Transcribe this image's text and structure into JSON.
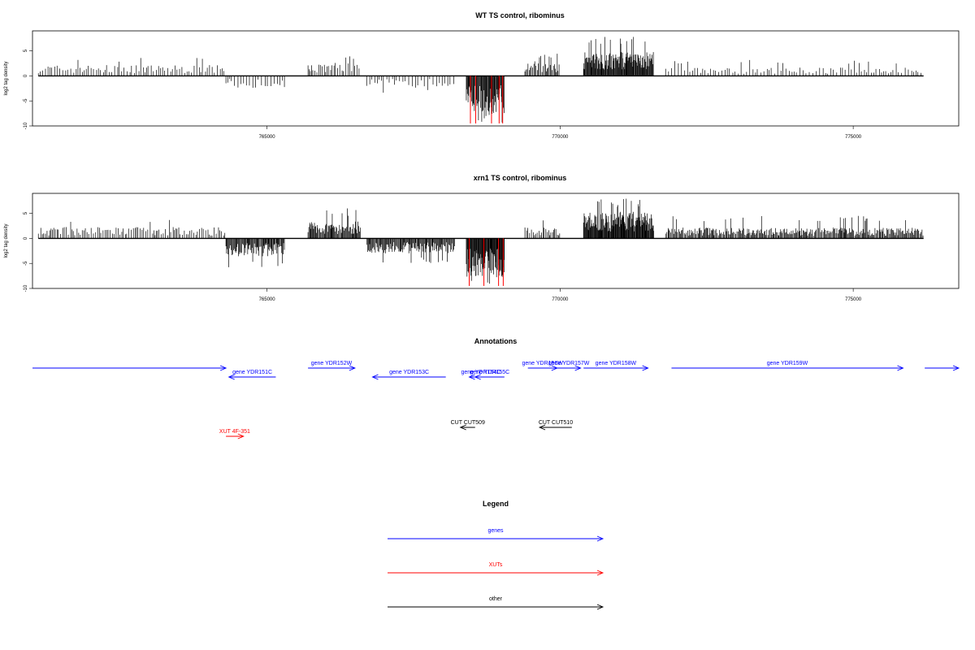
{
  "chart_data": [
    {
      "type": "bar",
      "title": "WT TS control, ribominus",
      "ylabel": "log2 tag density",
      "xlim": [
        761000,
        776800
      ],
      "ylim": [
        -10,
        9
      ],
      "x_ticks": [
        765000,
        770000,
        775000
      ],
      "y_ticks": [
        -10,
        -5,
        0,
        5
      ],
      "highlight_color": "#ff0000",
      "bar_color": "#000000",
      "segments": [
        {
          "from": 761100,
          "to": 764300,
          "sign": 1,
          "mean": 1.8,
          "max": 3.8,
          "density": 0.35
        },
        {
          "from": 764300,
          "to": 765300,
          "sign": -1,
          "mean": 2.0,
          "max": 4.0,
          "density": 0.3
        },
        {
          "from": 765700,
          "to": 766600,
          "sign": 1,
          "mean": 2.3,
          "max": 4.5,
          "density": 0.45
        },
        {
          "from": 766700,
          "to": 768200,
          "sign": -1,
          "mean": 2.0,
          "max": 3.5,
          "density": 0.3
        },
        {
          "from": 768400,
          "to": 769050,
          "sign": -1,
          "mean": 6.0,
          "max": 9.5,
          "density": 1.4
        },
        {
          "from": 769400,
          "to": 770000,
          "sign": 1,
          "mean": 2.5,
          "max": 4.5,
          "density": 0.8
        },
        {
          "from": 770400,
          "to": 771600,
          "sign": 1,
          "mean": 4.0,
          "max": 8.0,
          "density": 1.5
        },
        {
          "from": 771800,
          "to": 776200,
          "sign": 1,
          "mean": 1.4,
          "max": 3.2,
          "density": 0.3
        }
      ],
      "highlights": [
        768470,
        768560,
        768830,
        768960,
        769020
      ]
    },
    {
      "type": "bar",
      "title": "xrn1 TS control, ribominus",
      "ylabel": "log2 tag density",
      "xlim": [
        761000,
        776800
      ],
      "ylim": [
        -10,
        9
      ],
      "x_ticks": [
        765000,
        770000,
        775000
      ],
      "y_ticks": [
        -10,
        -5,
        0,
        5
      ],
      "highlight_color": "#ff0000",
      "bar_color": "#000000",
      "segments": [
        {
          "from": 761100,
          "to": 764300,
          "sign": 1,
          "mean": 1.9,
          "max": 3.8,
          "density": 0.45
        },
        {
          "from": 764300,
          "to": 765300,
          "sign": -1,
          "mean": 3.0,
          "max": 6.0,
          "density": 1.1
        },
        {
          "from": 765700,
          "to": 766600,
          "sign": 1,
          "mean": 2.8,
          "max": 6.0,
          "density": 1.1
        },
        {
          "from": 766700,
          "to": 768200,
          "sign": -1,
          "mean": 2.5,
          "max": 5.0,
          "density": 1.1
        },
        {
          "from": 768400,
          "to": 769050,
          "sign": -1,
          "mean": 6.5,
          "max": 9.5,
          "density": 1.6
        },
        {
          "from": 769400,
          "to": 770000,
          "sign": 1,
          "mean": 2.0,
          "max": 4.0,
          "density": 0.6
        },
        {
          "from": 770400,
          "to": 771600,
          "sign": 1,
          "mean": 4.5,
          "max": 8.0,
          "density": 1.6
        },
        {
          "from": 771800,
          "to": 776200,
          "sign": 1,
          "mean": 1.8,
          "max": 4.5,
          "density": 0.9
        }
      ],
      "highlights": [
        768450,
        768700,
        768950,
        769030
      ]
    }
  ],
  "annotations": {
    "title": "Annotations",
    "gene_color": "#0000ff",
    "xut_color": "#ff0000",
    "other_color": "#000000",
    "items": [
      {
        "label": "",
        "type": "gene",
        "dir": "right",
        "from": 761000,
        "to": 764300,
        "row": 0
      },
      {
        "label": "gene YDR151C",
        "type": "gene",
        "dir": "left",
        "from": 764350,
        "to": 765150,
        "row": 1
      },
      {
        "label": "gene YDR152W",
        "type": "gene",
        "dir": "right",
        "from": 765700,
        "to": 766500,
        "row": 0
      },
      {
        "label": "gene YDR153C",
        "type": "gene",
        "dir": "left",
        "from": 766800,
        "to": 768050,
        "row": 1
      },
      {
        "label": "gene YDR154C",
        "type": "gene",
        "dir": "left",
        "from": 768450,
        "to": 768850,
        "row": 1
      },
      {
        "label": "gene YDR155C",
        "type": "gene",
        "dir": "left",
        "from": 768550,
        "to": 769050,
        "row": 1
      },
      {
        "label": "gene YDR156W",
        "type": "gene",
        "dir": "right",
        "from": 769450,
        "to": 769950,
        "row": 0
      },
      {
        "label": "gene YDR157W",
        "type": "gene",
        "dir": "right",
        "from": 769950,
        "to": 770350,
        "row": 0
      },
      {
        "label": "gene YDR158W",
        "type": "gene",
        "dir": "right",
        "from": 770400,
        "to": 771500,
        "row": 0
      },
      {
        "label": "gene YDR159W",
        "type": "gene",
        "dir": "right",
        "from": 771900,
        "to": 775850,
        "row": 0
      },
      {
        "label": "",
        "type": "gene",
        "dir": "right",
        "from": 776220,
        "to": 776800,
        "row": 0
      },
      {
        "label": "CUT CUT509",
        "type": "other",
        "dir": "left",
        "from": 768300,
        "to": 768550,
        "row": 2
      },
      {
        "label": "CUT CUT510",
        "type": "other",
        "dir": "left",
        "from": 769650,
        "to": 770200,
        "row": 2
      },
      {
        "label": "XUT 4F-351",
        "type": "xut",
        "dir": "right",
        "from": 764300,
        "to": 764600,
        "row": 3
      }
    ]
  },
  "legend": {
    "title": "Legend",
    "items": [
      {
        "label": "genes",
        "color": "#0000ff"
      },
      {
        "label": "XUTs",
        "color": "#ff0000"
      },
      {
        "label": "other",
        "color": "#000000"
      }
    ]
  }
}
